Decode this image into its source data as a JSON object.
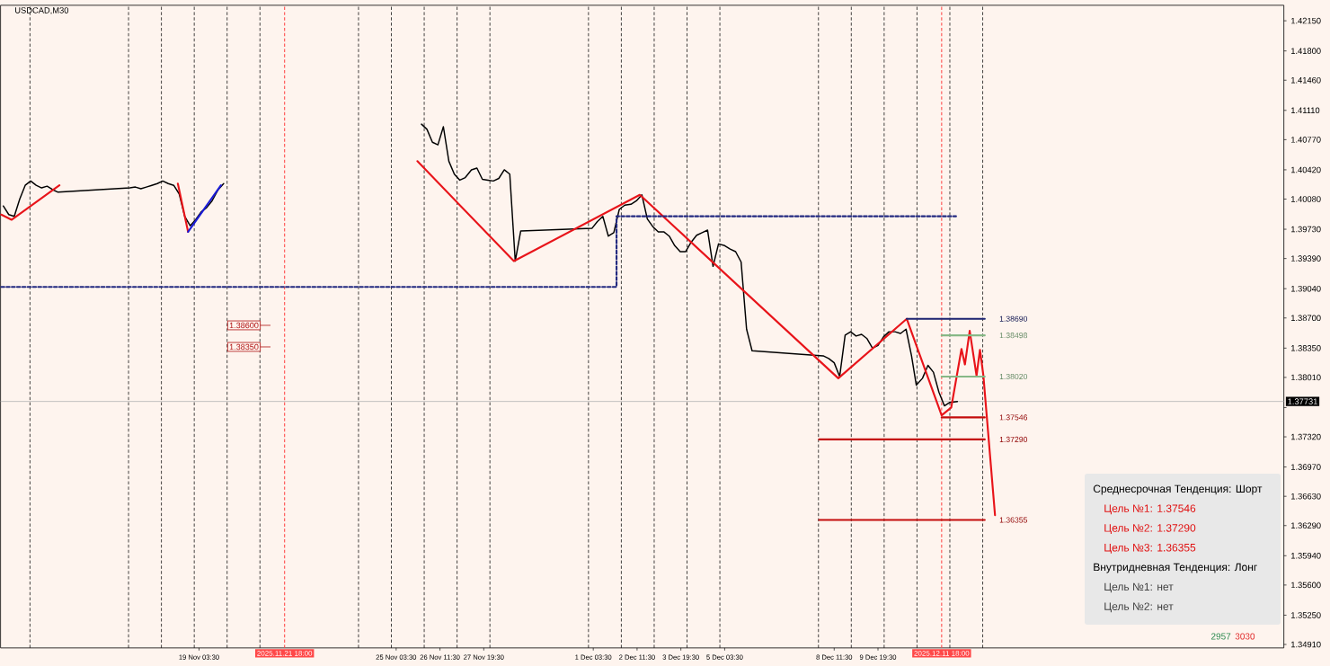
{
  "chart_data": {
    "type": "line",
    "title": "USDCAD,M30",
    "series": [
      {
        "color": "#000000",
        "x": [
          "2025-11-13T04:30",
          "2025-11-13T08:30",
          "2025-11-13T12:30",
          "2025-11-13T16:30",
          "2025-11-13T20:30",
          "2025-11-14T00:30",
          "2025-11-14T04:30",
          "2025-11-14T08:30",
          "2025-11-14T12:30",
          "2025-11-14T16:30",
          "2025-11-14T20:30",
          "2025-11-17T01:00",
          "2025-11-17T05:00",
          "2025-11-17T09:00",
          "2025-11-17T13:00",
          "2025-11-17T17:00",
          "2025-11-17T21:00",
          "2025-11-18T01:00",
          "2025-11-18T05:00",
          "2025-11-18T09:00",
          "2025-11-18T13:00",
          "2025-11-18T17:00",
          "2025-11-18T21:00",
          "2025-11-19T01:00",
          "2025-11-19T05:00",
          "2025-11-19T09:00",
          "2025-11-19T13:00",
          "2025-11-19T17:30",
          "2025-11-19T21:30",
          "2025-11-20T01:30",
          "2025-11-25T22:00",
          "2025-11-26T02:00",
          "2025-11-26T06:00",
          "2025-11-26T10:00",
          "2025-11-26T14:00",
          "2025-11-26T18:00",
          "2025-11-26T22:00",
          "2025-11-27T02:00",
          "2025-11-27T06:00",
          "2025-11-27T10:30",
          "2025-11-27T14:30",
          "2025-11-27T18:30",
          "2025-11-27T22:30",
          "2025-11-28T02:30",
          "2025-11-28T06:30",
          "2025-11-28T10:30",
          "2025-11-28T14:30",
          "2025-11-28T18:30",
          "2025-11-28T22:30",
          "2025-12-01T02:30",
          "2025-12-01T06:30",
          "2025-12-01T10:30",
          "2025-12-01T14:30",
          "2025-12-01T18:30",
          "2025-12-01T22:30",
          "2025-12-02T02:30",
          "2025-12-02T07:00",
          "2025-12-02T11:00",
          "2025-12-02T15:00",
          "2025-12-02T19:00",
          "2025-12-02T23:00",
          "2025-12-03T03:00",
          "2025-12-03T07:00",
          "2025-12-03T11:00",
          "2025-12-03T15:00",
          "2025-12-03T19:00",
          "2025-12-03T23:00",
          "2025-12-04T03:00",
          "2025-12-04T07:00",
          "2025-12-04T11:00",
          "2025-12-04T15:00",
          "2025-12-04T19:00",
          "2025-12-04T23:00",
          "2025-12-05T03:30",
          "2025-12-05T07:30",
          "2025-12-05T11:30",
          "2025-12-05T15:30",
          "2025-12-05T19:30",
          "2025-12-05T23:30",
          "2025-12-08T03:30",
          "2025-12-08T07:30",
          "2025-12-08T11:30",
          "2025-12-08T15:30",
          "2025-12-08T19:30",
          "2025-12-08T23:30",
          "2025-12-09T03:30",
          "2025-12-09T07:30",
          "2025-12-09T11:30",
          "2025-12-09T15:30",
          "2025-12-09T19:30",
          "2025-12-09T23:30",
          "2025-12-10T03:30",
          "2025-12-10T08:00",
          "2025-12-10T12:00",
          "2025-12-10T16:00",
          "2025-12-10T20:00",
          "2025-12-10T23:30",
          "2025-12-11T04:00",
          "2025-12-11T08:00",
          "2025-12-11T12:00",
          "2025-12-11T16:00",
          "2025-12-11T20:00",
          "2025-12-12T00:00",
          "2025-12-12T05:30"
        ],
        "values": [
          1.4,
          1.399,
          1.3988,
          1.4008,
          1.4024,
          1.4029,
          1.4024,
          1.4021,
          1.4023,
          1.4019,
          1.4016,
          1.4021,
          1.4022,
          1.402,
          1.4022,
          1.4024,
          1.4026,
          1.4029,
          1.4026,
          1.4024,
          1.4014,
          1.3988,
          1.3977,
          1.3984,
          1.3993,
          1.3998,
          1.4006,
          1.4019,
          1.4026,
          null,
          1.4095,
          1.4089,
          1.4074,
          1.4071,
          1.4092,
          1.4052,
          1.4037,
          1.403,
          1.4033,
          1.4042,
          1.4044,
          1.4031,
          1.403,
          1.4029,
          1.4032,
          1.4042,
          1.4037,
          1.3936,
          1.3971,
          1.3974,
          1.3982,
          1.3988,
          1.3965,
          1.3969,
          1.3996,
          1.4001,
          1.4002,
          1.4006,
          1.4013,
          1.3985,
          1.3976,
          1.397,
          1.397,
          1.3965,
          1.3954,
          1.3947,
          1.3947,
          1.3958,
          1.3966,
          1.3969,
          1.3972,
          1.393,
          1.3956,
          1.3954,
          1.395,
          1.3947,
          1.3935,
          1.3857,
          1.3832,
          1.3826,
          1.3823,
          1.3818,
          1.3802,
          1.385,
          1.3854,
          1.3849,
          1.3851,
          1.3846,
          1.3835,
          1.3838,
          1.3848,
          1.3854,
          1.3854,
          1.3852,
          1.3857,
          1.3826,
          1.3792,
          1.38,
          1.3815,
          1.3807,
          1.3784,
          1.3768,
          1.3772,
          1.3773
        ]
      },
      {
        "color": "#e8141a",
        "x": [
          "2025-11-13T03:00",
          "2025-11-13T10:30",
          "2025-11-14T21:30",
          "2025-11-17T12:00",
          "2025-11-18T12:00",
          "2025-11-18T19:30",
          "2025-11-21T12:00",
          "2025-11-25T19:00",
          "2025-11-28T17:30",
          "2025-12-02T13:30",
          "2025-12-08T14:30",
          "2025-12-10T16:30",
          "2025-12-11T18:00",
          "2025-12-12T01:00",
          "2025-12-12T08:30",
          "2025-12-12T11:00",
          "2025-12-12T14:30",
          "2025-12-12T19:30",
          "2025-12-12T22:00",
          "2025-12-13T00:30",
          "2025-12-13T09:00"
        ],
        "values": [
          1.399,
          1.3984,
          1.4024,
          null,
          1.4026,
          1.397,
          null,
          1.4052,
          1.3936,
          1.4013,
          1.38,
          1.3869,
          1.3757,
          1.3766,
          1.3834,
          1.3816,
          1.3855,
          1.3803,
          1.3833,
          1.3803,
          1.3641
        ]
      },
      {
        "color": "#1c1cd6",
        "x": [
          "2025-11-18T19:30",
          "2025-11-19T19:30"
        ],
        "values": [
          1.397,
          1.4024
        ]
      },
      {
        "color": "#232a80",
        "line_style": "dashed",
        "x": [
          "2025-11-13T03:00",
          "2025-12-01T20:30",
          "2025-12-01T20:30",
          "2025-12-12T04:30"
        ],
        "values": [
          1.3906,
          1.3906,
          1.3988,
          1.3988
        ]
      },
      {
        "name": "1.38690",
        "color": "#1c2370",
        "x": [
          "2025-12-10T16:30",
          "2025-12-13T01:30"
        ],
        "values": [
          1.3869,
          1.3869
        ]
      },
      {
        "name": "1.38498",
        "color": "#86b886",
        "x": [
          "2025-12-11T18:00",
          "2025-12-13T01:30"
        ],
        "values": [
          1.38498,
          1.38498
        ]
      },
      {
        "name": "1.38020",
        "color": "#86b886",
        "x": [
          "2025-12-11T18:00",
          "2025-12-13T01:30"
        ],
        "values": [
          1.3802,
          1.3802
        ]
      },
      {
        "name": "1.37546",
        "color": "#c40c0c",
        "x": [
          "2025-12-11T18:00",
          "2025-12-13T01:30"
        ],
        "values": [
          1.37546,
          1.37546
        ]
      },
      {
        "name": "1.37290",
        "color": "#c40c0c",
        "x": [
          "2025-12-08T00:30",
          "2025-12-13T01:30"
        ],
        "values": [
          1.3729,
          1.3729
        ]
      },
      {
        "name": "1.36355",
        "color": "#c40c0c",
        "x": [
          "2025-12-08T00:30",
          "2025-12-13T01:30"
        ],
        "values": [
          1.36355,
          1.36355
        ]
      }
    ],
    "xlim": [
      "2025-11-13T02:30",
      "2025-12-22T04:00"
    ],
    "xticks": [
      {
        "value": "2025-11-19T03:30",
        "label": "19 Nov 03:30"
      },
      {
        "value": "2025-11-25T03:30",
        "label": "25 Nov 03:30"
      },
      {
        "value": "2025-11-26T11:30",
        "label": "26 Nov 11:30"
      },
      {
        "value": "2025-11-27T19:30",
        "label": "27 Nov 19:30"
      },
      {
        "value": "2025-12-01T03:30",
        "label": "1 Dec 03:30"
      },
      {
        "value": "2025-12-02T11:30",
        "label": "2 Dec 11:30"
      },
      {
        "value": "2025-12-03T19:30",
        "label": "3 Dec 19:30"
      },
      {
        "value": "2025-12-05T03:30",
        "label": "5 Dec 03:30"
      },
      {
        "value": "2025-12-08T11:30",
        "label": "8 Dec 11:30"
      },
      {
        "value": "2025-12-09T19:30",
        "label": "9 Dec 19:30"
      }
    ],
    "ylim": [
      1.3487,
      1.4233
    ],
    "yticks": [
      {
        "value": 1.4215,
        "label": "1.42150"
      },
      {
        "value": 1.418,
        "label": "1.41800"
      },
      {
        "value": 1.4146,
        "label": "1.41460"
      },
      {
        "value": 1.4111,
        "label": "1.41110"
      },
      {
        "value": 1.4077,
        "label": "1.40770"
      },
      {
        "value": 1.4042,
        "label": "1.40420"
      },
      {
        "value": 1.4008,
        "label": "1.40080"
      },
      {
        "value": 1.3973,
        "label": "1.39730"
      },
      {
        "value": 1.3939,
        "label": "1.39390"
      },
      {
        "value": 1.3904,
        "label": "1.39040"
      },
      {
        "value": 1.387,
        "label": "1.38700"
      },
      {
        "value": 1.3835,
        "label": "1.38350"
      },
      {
        "value": 1.3801,
        "label": "1.38010"
      },
      {
        "value": 1.3766,
        "label": null
      },
      {
        "value": 1.3732,
        "label": "1.37320"
      },
      {
        "value": 1.3697,
        "label": "1.36970"
      },
      {
        "value": 1.3663,
        "label": "1.36630"
      },
      {
        "value": 1.3629,
        "label": "1.36290"
      },
      {
        "value": 1.3594,
        "label": "1.35940"
      },
      {
        "value": 1.356,
        "label": "1.35600"
      },
      {
        "value": 1.3525,
        "label": "1.35250"
      },
      {
        "value": 1.3491,
        "label": "1.34910"
      }
    ],
    "ref_lines": [
      {
        "axis": "x",
        "value": "2025-11-14T00:00",
        "color": "#000000",
        "line_style": "dashed"
      },
      {
        "axis": "x",
        "value": "2025-11-17T00:00",
        "color": "#000000",
        "line_style": "dashed"
      },
      {
        "axis": "x",
        "value": "2025-11-18T00:00",
        "color": "#000000",
        "line_style": "dashed"
      },
      {
        "axis": "x",
        "value": "2025-11-19T00:00",
        "color": "#000000",
        "line_style": "dashed"
      },
      {
        "axis": "x",
        "value": "2025-11-20T00:00",
        "color": "#000000",
        "line_style": "dashed"
      },
      {
        "axis": "x",
        "value": "2025-11-21T00:00",
        "color": "#000000",
        "line_style": "dashed"
      },
      {
        "axis": "x",
        "value": "2025-11-24T00:00",
        "color": "#000000",
        "line_style": "dashed"
      },
      {
        "axis": "x",
        "value": "2025-11-25T00:00",
        "color": "#000000",
        "line_style": "dashed"
      },
      {
        "axis": "x",
        "value": "2025-11-26T00:00",
        "color": "#000000",
        "line_style": "dashed"
      },
      {
        "axis": "x",
        "value": "2025-11-27T00:00",
        "color": "#000000",
        "line_style": "dashed"
      },
      {
        "axis": "x",
        "value": "2025-11-28T00:00",
        "color": "#000000",
        "line_style": "dashed"
      },
      {
        "axis": "x",
        "value": "2025-12-01T00:00",
        "color": "#000000",
        "line_style": "dashed"
      },
      {
        "axis": "x",
        "value": "2025-12-02T00:00",
        "color": "#000000",
        "line_style": "dashed"
      },
      {
        "axis": "x",
        "value": "2025-12-03T00:00",
        "color": "#000000",
        "line_style": "dashed"
      },
      {
        "axis": "x",
        "value": "2025-12-04T00:00",
        "color": "#000000",
        "line_style": "dashed"
      },
      {
        "axis": "x",
        "value": "2025-12-05T00:00",
        "color": "#000000",
        "line_style": "dashed"
      },
      {
        "axis": "x",
        "value": "2025-12-08T00:00",
        "color": "#000000",
        "line_style": "dashed"
      },
      {
        "axis": "x",
        "value": "2025-12-09T00:00",
        "color": "#000000",
        "line_style": "dashed"
      },
      {
        "axis": "x",
        "value": "2025-12-10T00:00",
        "color": "#000000",
        "line_style": "dashed"
      },
      {
        "axis": "x",
        "value": "2025-12-11T00:00",
        "color": "#000000",
        "line_style": "dashed"
      },
      {
        "axis": "x",
        "value": "2025-12-12T00:00",
        "color": "#000000",
        "line_style": "dashed"
      },
      {
        "axis": "x",
        "value": "2025-12-13T00:00",
        "color": "#000000",
        "line_style": "dashed"
      },
      {
        "axis": "y",
        "value": 1.37731,
        "label": "1.37731",
        "color": "#b4b4b4"
      },
      {
        "axis": "x",
        "value": "2025-11-21T18:00",
        "label": "2025.11.21 18:00",
        "color": "#ff4848",
        "line_style": "dashed"
      },
      {
        "axis": "x",
        "value": "2025-12-11T18:00",
        "label": "2025.12.11 18:00",
        "color": "#ff4848",
        "line_style": "dashed"
      }
    ],
    "annotations": [
      "Среднесрочная Тенденция: Шорт",
      "Цель №1: 1.37546",
      "Цель №2: 1.37290",
      "Цель №3: 1.36355",
      "Внутридневная Тенденция: Лонг",
      "Цель №1: нет",
      "Цель №2: нет",
      "2957",
      "3030",
      "1.38600",
      "1.38350"
    ]
  }
}
